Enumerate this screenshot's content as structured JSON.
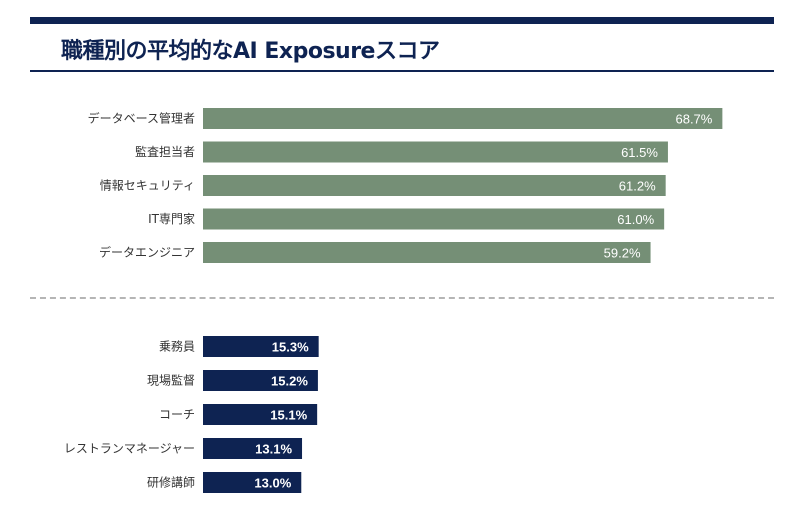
{
  "title": "職種別の平均的なAI Exposureスコア",
  "colors": {
    "top_group_bar": "#758f76",
    "bottom_group_bar": "#0e2352",
    "title": "#0e2352"
  },
  "chart_data": [
    {
      "type": "bar",
      "orientation": "horizontal",
      "group": "top",
      "categories": [
        "データベース管理者",
        "監査担当者",
        "情報セキュリティ",
        "IT専門家",
        "データエンジニア"
      ],
      "values": [
        68.7,
        61.5,
        61.2,
        61.0,
        59.2
      ],
      "value_labels": [
        "68.7%",
        "61.5%",
        "61.2%",
        "61.0%",
        "59.2%"
      ],
      "unit": "%",
      "xlim": [
        0,
        100
      ],
      "grid": false,
      "legend": "none"
    },
    {
      "type": "bar",
      "orientation": "horizontal",
      "group": "bottom",
      "categories": [
        "乗務員",
        "現場監督",
        "コーチ",
        "レストランマネージャー",
        "研修講師"
      ],
      "values": [
        15.3,
        15.2,
        15.1,
        13.1,
        13.0
      ],
      "value_labels": [
        "15.3%",
        "15.2%",
        "15.1%",
        "13.1%",
        "13.0%"
      ],
      "unit": "%",
      "xlim": [
        0,
        100
      ],
      "grid": false,
      "legend": "none"
    }
  ]
}
